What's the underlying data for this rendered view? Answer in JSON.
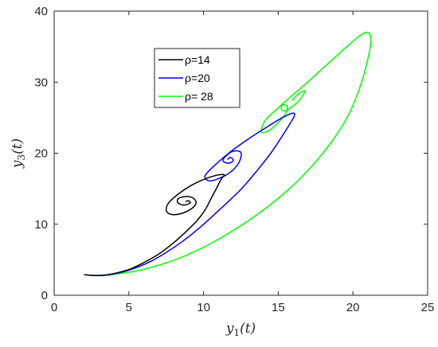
{
  "chart_data": {
    "type": "line",
    "title": "",
    "xlabel": "y_1(t)",
    "ylabel": "y_3(t)",
    "xlim": [
      0,
      25
    ],
    "ylim": [
      0,
      40
    ],
    "xticks": [
      "0",
      "5",
      "10",
      "15",
      "20",
      "25"
    ],
    "yticks": [
      "0",
      "10",
      "20",
      "30",
      "40"
    ],
    "grid": false,
    "legend_position": "top-center",
    "series": [
      {
        "name": "ρ=14",
        "color": "#000000",
        "points": [
          [
            2.0,
            2.9
          ],
          [
            2.5,
            2.8
          ],
          [
            3.0,
            2.8
          ],
          [
            3.6,
            2.9
          ],
          [
            4.3,
            3.2
          ],
          [
            5.1,
            3.7
          ],
          [
            6.0,
            4.6
          ],
          [
            7.0,
            5.8
          ],
          [
            8.0,
            7.4
          ],
          [
            8.9,
            9.1
          ],
          [
            9.6,
            10.6
          ],
          [
            10.1,
            12.0
          ],
          [
            10.5,
            13.6
          ],
          [
            10.9,
            15.2
          ],
          [
            11.2,
            16.4
          ],
          [
            11.4,
            16.9
          ],
          [
            11.2,
            17.0
          ],
          [
            10.7,
            16.8
          ],
          [
            10.0,
            16.3
          ],
          [
            9.2,
            15.5
          ],
          [
            8.4,
            14.4
          ],
          [
            7.7,
            13.1
          ],
          [
            7.5,
            12.0
          ],
          [
            7.8,
            11.4
          ],
          [
            8.5,
            11.5
          ],
          [
            9.2,
            12.2
          ],
          [
            9.5,
            13.0
          ],
          [
            9.3,
            13.7
          ],
          [
            8.8,
            13.9
          ],
          [
            8.3,
            13.6
          ],
          [
            8.3,
            13.0
          ],
          [
            8.7,
            12.7
          ],
          [
            9.1,
            13.0
          ],
          [
            9.0,
            13.3
          ],
          [
            8.8,
            13.2
          ]
        ]
      },
      {
        "name": "ρ=20",
        "color": "#0000ff",
        "points": [
          [
            2.0,
            2.9
          ],
          [
            2.6,
            2.8
          ],
          [
            3.3,
            2.8
          ],
          [
            4.2,
            3.1
          ],
          [
            5.1,
            3.6
          ],
          [
            6.2,
            4.5
          ],
          [
            7.4,
            5.9
          ],
          [
            8.6,
            7.6
          ],
          [
            9.9,
            9.8
          ],
          [
            11.2,
            12.3
          ],
          [
            12.5,
            14.9
          ],
          [
            13.6,
            17.6
          ],
          [
            14.5,
            20.0
          ],
          [
            15.2,
            22.2
          ],
          [
            15.8,
            24.2
          ],
          [
            16.1,
            25.4
          ],
          [
            15.9,
            25.6
          ],
          [
            15.1,
            24.8
          ],
          [
            14.1,
            23.5
          ],
          [
            13.0,
            22.0
          ],
          [
            11.8,
            20.2
          ],
          [
            10.7,
            18.2
          ],
          [
            10.1,
            16.8
          ],
          [
            10.4,
            16.1
          ],
          [
            11.2,
            16.6
          ],
          [
            11.9,
            17.5
          ],
          [
            12.4,
            18.8
          ],
          [
            12.5,
            20.1
          ],
          [
            12.0,
            20.3
          ],
          [
            11.5,
            19.6
          ],
          [
            11.3,
            18.9
          ],
          [
            11.7,
            18.6
          ],
          [
            12.0,
            19.0
          ],
          [
            11.8,
            19.4
          ],
          [
            11.6,
            19.1
          ]
        ]
      },
      {
        "name": "ρ= 28",
        "color": "#00ff00",
        "points": [
          [
            2.0,
            2.9
          ],
          [
            2.6,
            2.8
          ],
          [
            3.4,
            2.8
          ],
          [
            4.5,
            3.1
          ],
          [
            5.7,
            3.5
          ],
          [
            7.1,
            4.3
          ],
          [
            8.7,
            5.5
          ],
          [
            10.4,
            7.2
          ],
          [
            12.2,
            9.4
          ],
          [
            14.0,
            12.0
          ],
          [
            15.8,
            15.1
          ],
          [
            17.3,
            18.3
          ],
          [
            18.6,
            21.7
          ],
          [
            19.7,
            25.4
          ],
          [
            20.5,
            29.5
          ],
          [
            21.0,
            33.3
          ],
          [
            21.2,
            36.0
          ],
          [
            21.0,
            37.0
          ],
          [
            20.5,
            36.6
          ],
          [
            19.7,
            35.2
          ],
          [
            18.8,
            33.5
          ],
          [
            17.8,
            31.6
          ],
          [
            16.8,
            29.7
          ],
          [
            15.8,
            27.9
          ],
          [
            14.9,
            26.2
          ],
          [
            14.2,
            24.8
          ],
          [
            13.9,
            23.6
          ],
          [
            13.9,
            22.9
          ],
          [
            14.4,
            23.2
          ],
          [
            15.0,
            24.3
          ],
          [
            15.5,
            25.6
          ],
          [
            15.6,
            26.6
          ],
          [
            15.3,
            26.8
          ],
          [
            15.2,
            26.2
          ],
          [
            15.5,
            26.0
          ],
          [
            16.2,
            27.0
          ],
          [
            16.6,
            28.0
          ],
          [
            16.8,
            28.8
          ],
          [
            16.4,
            28.4
          ],
          [
            15.9,
            27.4
          ]
        ]
      }
    ]
  }
}
